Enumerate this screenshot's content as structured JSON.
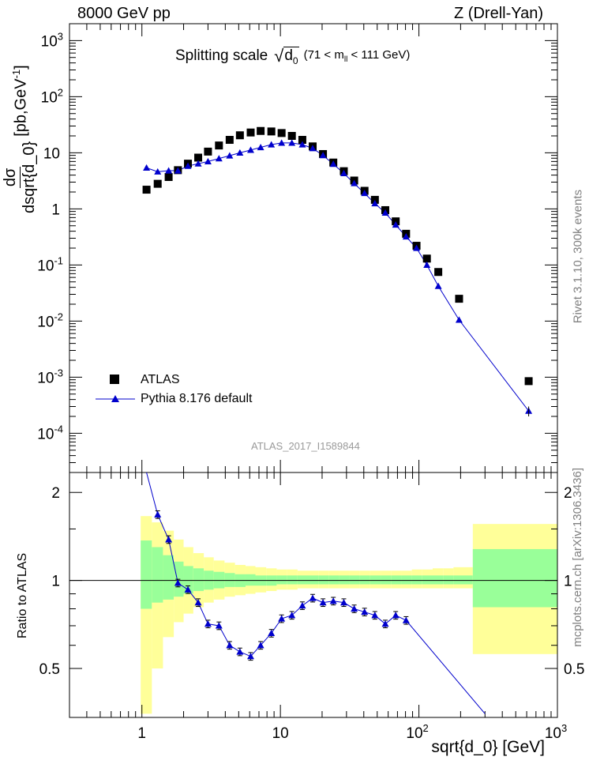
{
  "header": {
    "left": "8000 GeV pp",
    "right": "Z (Drell-Yan)"
  },
  "title": {
    "main": "Splitting scale",
    "radicand": "d",
    "radicand_sub": "0",
    "cut": "(71 < m",
    "cut_sub": "ll",
    "cut_end": " < 111 GeV)"
  },
  "side_text": {
    "rivet": "Rivet 3.1.10,  300k events",
    "mcplots": "mcplots.cern.ch [arXiv:1306.3436]"
  },
  "y_axis_label": {
    "numerator": "dσ",
    "denominator": "dsqrt{d_0}",
    "units": "[pb,GeV",
    "units_exp": "-1",
    "units_end": "]"
  },
  "ratio_axis_label": "Ratio to ATLAS",
  "x_axis_label": "sqrt{d_0} [GeV]",
  "watermark": "ATLAS_2017_I1589844",
  "legend": {
    "data_label": "ATLAS",
    "mc_label": "Pythia 8.176 default"
  },
  "colors": {
    "mc_line": "#0000cc",
    "band_inner": "#99ff99",
    "band_outer": "#ffff99",
    "data_marker": "#000000"
  },
  "chart_data": {
    "type": "scatter",
    "x_scale": "log",
    "xlim": [
      0.3,
      1000
    ],
    "x_ticks": [
      "1",
      "10",
      "10^2",
      "10^3"
    ],
    "main_panel": {
      "y_scale": "log",
      "ylim": [
        2e-05,
        2000
      ],
      "y_ticks": [
        "10^-4",
        "10^-3",
        "10^-2",
        "10^-1",
        "1",
        "10",
        "10^2",
        "10^3"
      ],
      "series": [
        {
          "name": "ATLAS",
          "marker": "square",
          "x": [
            1.08,
            1.3,
            1.56,
            1.82,
            2.15,
            2.55,
            3.0,
            3.6,
            4.3,
            5.1,
            6.1,
            7.2,
            8.6,
            10.2,
            12.1,
            14.4,
            17.1,
            20.3,
            24.1,
            28.7,
            34.1,
            40.5,
            48.1,
            57.2,
            68.0,
            80.8,
            96.1,
            114.2,
            138.0,
            195.0,
            620.0
          ],
          "y": [
            2.2,
            2.8,
            3.7,
            4.9,
            6.4,
            8.2,
            10.5,
            13.5,
            17.0,
            20.5,
            23.0,
            24.5,
            24.0,
            22.5,
            20.0,
            17.0,
            13.0,
            9.5,
            6.7,
            4.7,
            3.2,
            2.1,
            1.45,
            0.95,
            0.6,
            0.36,
            0.22,
            0.13,
            0.075,
            0.025,
            0.00085
          ]
        },
        {
          "name": "Pythia 8.176 default",
          "marker": "triangle",
          "x": [
            1.08,
            1.3,
            1.56,
            1.82,
            2.15,
            2.55,
            3.0,
            3.6,
            4.3,
            5.1,
            6.1,
            7.2,
            8.6,
            10.2,
            12.1,
            14.4,
            17.1,
            20.3,
            24.1,
            28.7,
            34.1,
            40.5,
            48.1,
            57.2,
            68.0,
            80.8,
            96.1,
            114.2,
            138.0,
            195.0,
            620.0
          ],
          "y": [
            5.4,
            4.6,
            4.8,
            4.8,
            5.8,
            6.4,
            7.0,
            7.9,
            8.9,
            10.0,
            11.2,
            12.5,
            14.0,
            15.0,
            15.0,
            14.0,
            12.0,
            9.0,
            6.3,
            4.3,
            2.85,
            1.9,
            1.25,
            0.85,
            0.52,
            0.32,
            0.2,
            0.1,
            0.042,
            0.0105,
            0.00025
          ]
        }
      ]
    },
    "ratio_panel": {
      "ylim": [
        0.34,
        2.34
      ],
      "y_ticks": [
        0.5,
        1,
        2
      ],
      "reference_line": 1,
      "mc_ratio": {
        "x": [
          1.08,
          1.3,
          1.56,
          1.82,
          2.15,
          2.55,
          3.0,
          3.6,
          4.3,
          5.1,
          6.1,
          7.2,
          8.6,
          10.2,
          12.1,
          14.4,
          17.1,
          20.3,
          24.1,
          28.7,
          34.1,
          40.5,
          48.1,
          57.2,
          68.0,
          80.8,
          300.0
        ],
        "y": [
          2.45,
          1.68,
          1.38,
          0.98,
          0.93,
          0.84,
          0.71,
          0.7,
          0.6,
          0.57,
          0.55,
          0.6,
          0.66,
          0.74,
          0.76,
          0.82,
          0.87,
          0.84,
          0.85,
          0.84,
          0.8,
          0.78,
          0.76,
          0.71,
          0.76,
          0.73,
          0.35
        ]
      },
      "uncertainty_bins": {
        "edges": [
          0.98,
          1.18,
          1.42,
          1.7,
          2.0,
          2.35,
          2.8,
          3.3,
          3.95,
          4.7,
          5.6,
          6.6,
          7.9,
          9.4,
          11.2,
          13.3,
          15.8,
          18.8,
          22.3,
          26.5,
          31.5,
          37.4,
          44.5,
          52.9,
          62.9,
          74.8,
          88.9,
          105.7,
          125.7,
          149.5,
          177.7,
          245.0,
          1000.0
        ],
        "inner_low": [
          0.8,
          0.84,
          0.86,
          0.88,
          0.9,
          0.92,
          0.93,
          0.94,
          0.95,
          0.95,
          0.96,
          0.96,
          0.96,
          0.97,
          0.97,
          0.97,
          0.97,
          0.97,
          0.97,
          0.97,
          0.97,
          0.97,
          0.97,
          0.97,
          0.97,
          0.97,
          0.97,
          0.97,
          0.97,
          0.97,
          0.97,
          0.81
        ],
        "inner_high": [
          1.37,
          1.3,
          1.22,
          1.16,
          1.12,
          1.1,
          1.08,
          1.07,
          1.06,
          1.05,
          1.05,
          1.04,
          1.04,
          1.04,
          1.04,
          1.04,
          1.04,
          1.04,
          1.04,
          1.04,
          1.04,
          1.04,
          1.04,
          1.04,
          1.04,
          1.04,
          1.04,
          1.04,
          1.04,
          1.04,
          1.04,
          1.28
        ],
        "outer_low": [
          0.35,
          0.5,
          0.64,
          0.72,
          0.77,
          0.81,
          0.84,
          0.86,
          0.88,
          0.89,
          0.9,
          0.91,
          0.92,
          0.93,
          0.93,
          0.94,
          0.94,
          0.94,
          0.94,
          0.94,
          0.94,
          0.94,
          0.94,
          0.94,
          0.94,
          0.94,
          0.94,
          0.94,
          0.94,
          0.94,
          0.94,
          0.56
        ],
        "outer_high": [
          1.66,
          1.58,
          1.48,
          1.38,
          1.3,
          1.24,
          1.2,
          1.17,
          1.15,
          1.13,
          1.12,
          1.11,
          1.1,
          1.09,
          1.09,
          1.08,
          1.08,
          1.08,
          1.08,
          1.08,
          1.08,
          1.08,
          1.08,
          1.08,
          1.08,
          1.08,
          1.09,
          1.09,
          1.1,
          1.1,
          1.11,
          1.56
        ]
      }
    }
  }
}
